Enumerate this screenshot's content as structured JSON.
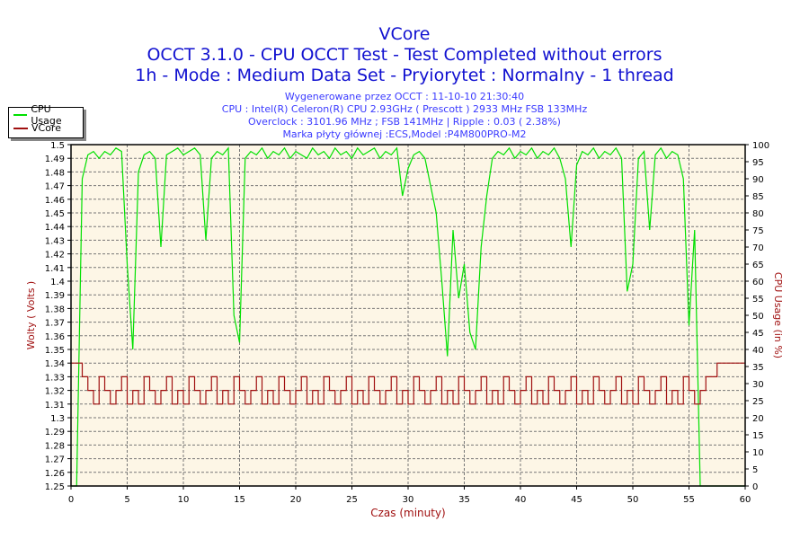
{
  "chart_data": {
    "type": "line",
    "title": "VCore",
    "subtitle_lines": [
      "OCCT 3.1.0 - CPU OCCT Test - Test Completed without errors",
      "1h - Mode : Medium Data Set - Pryiorytet : Normalny - 1 thread"
    ],
    "info_lines": [
      "Wygenerowane przez OCCT : 11-10-10 21:30:40",
      "CPU : Intel(R) Celeron(R) CPU 2.93GHz ( Prescott ) 2933 MHz FSB 133MHz",
      "Overclock : 3101.96 MHz ; FSB 141MHz | Ripple : 0.03 ( 2.38%)",
      "Marka płyty głównej :ECS,Model :P4M800PRO-M2"
    ],
    "xlabel": "Czas (minuty)",
    "ylabel": "Wolty ( Volts )",
    "y2label": "CPU Usage (in %)",
    "xlim": [
      0,
      60
    ],
    "ylim": [
      1.25,
      1.5
    ],
    "y2lim": [
      0,
      100
    ],
    "xticks": [
      0,
      5,
      10,
      15,
      20,
      25,
      30,
      35,
      40,
      45,
      50,
      55,
      60
    ],
    "yticks": [
      "1.25",
      "1.26",
      "1.27",
      "1.28",
      "1.29",
      "1.3",
      "1.31",
      "1.32",
      "1.33",
      "1.34",
      "1.35",
      "1.36",
      "1.37",
      "1.38",
      "1.39",
      "1.4",
      "1.41",
      "1.42",
      "1.43",
      "1.44",
      "1.45",
      "1.46",
      "1.47",
      "1.48",
      "1.49",
      "1.5"
    ],
    "y2ticks": [
      0,
      5,
      10,
      15,
      20,
      25,
      30,
      35,
      40,
      45,
      50,
      55,
      60,
      65,
      70,
      75,
      80,
      85,
      90,
      95,
      100
    ],
    "grid": true,
    "legend_position": "top-left",
    "x_step": 0.5,
    "series": [
      {
        "name": "CPU Usage",
        "axis": "right",
        "color": "#00e000",
        "values": [
          0,
          0,
          90,
          97,
          98,
          96,
          98,
          97,
          99,
          98,
          65,
          40,
          92,
          97,
          98,
          96,
          70,
          97,
          98,
          99,
          97,
          98,
          99,
          97,
          72,
          96,
          98,
          97,
          99,
          50,
          42,
          96,
          98,
          97,
          99,
          96,
          98,
          97,
          99,
          96,
          98,
          97,
          96,
          99,
          97,
          98,
          96,
          99,
          97,
          98,
          96,
          99,
          97,
          98,
          99,
          96,
          98,
          97,
          99,
          85,
          93,
          97,
          98,
          96,
          88,
          80,
          60,
          38,
          75,
          55,
          65,
          45,
          40,
          70,
          85,
          96,
          98,
          97,
          99,
          96,
          98,
          97,
          99,
          96,
          98,
          97,
          99,
          96,
          90,
          70,
          94,
          98,
          97,
          99,
          96,
          98,
          97,
          99,
          96,
          57,
          65,
          96,
          98,
          75,
          97,
          99,
          96,
          98,
          97,
          90,
          47,
          75,
          0,
          0,
          0,
          0,
          0,
          0,
          0,
          0,
          0
        ]
      },
      {
        "name": "VCore",
        "axis": "left",
        "color": "#a01010",
        "values": [
          1.34,
          1.34,
          1.33,
          1.32,
          1.31,
          1.33,
          1.32,
          1.31,
          1.32,
          1.33,
          1.31,
          1.32,
          1.31,
          1.33,
          1.32,
          1.31,
          1.32,
          1.33,
          1.31,
          1.32,
          1.31,
          1.33,
          1.32,
          1.31,
          1.32,
          1.33,
          1.31,
          1.32,
          1.31,
          1.33,
          1.32,
          1.31,
          1.32,
          1.33,
          1.31,
          1.32,
          1.31,
          1.33,
          1.32,
          1.31,
          1.32,
          1.33,
          1.31,
          1.32,
          1.31,
          1.33,
          1.32,
          1.31,
          1.32,
          1.33,
          1.31,
          1.32,
          1.31,
          1.33,
          1.32,
          1.31,
          1.32,
          1.33,
          1.31,
          1.32,
          1.31,
          1.33,
          1.32,
          1.31,
          1.32,
          1.33,
          1.31,
          1.32,
          1.31,
          1.33,
          1.32,
          1.31,
          1.32,
          1.33,
          1.31,
          1.32,
          1.31,
          1.33,
          1.32,
          1.31,
          1.32,
          1.33,
          1.31,
          1.32,
          1.31,
          1.33,
          1.32,
          1.31,
          1.32,
          1.33,
          1.31,
          1.32,
          1.31,
          1.33,
          1.32,
          1.31,
          1.32,
          1.33,
          1.31,
          1.32,
          1.31,
          1.33,
          1.32,
          1.31,
          1.32,
          1.33,
          1.31,
          1.32,
          1.31,
          1.33,
          1.32,
          1.31,
          1.32,
          1.33,
          1.33,
          1.34,
          1.34,
          1.34,
          1.34,
          1.34,
          1.34
        ]
      }
    ]
  }
}
